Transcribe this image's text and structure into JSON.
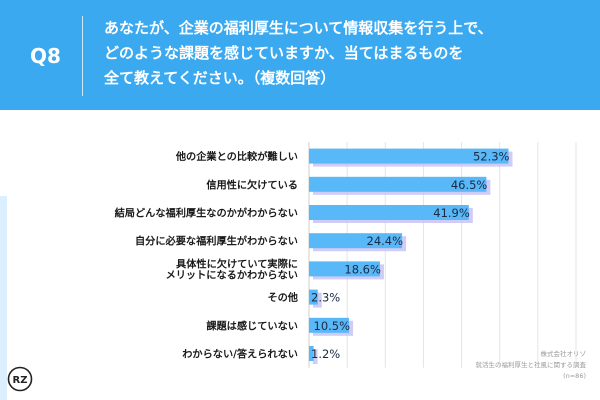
{
  "question": {
    "label": "Q8",
    "lines": [
      "あなたが、企業の福利厚生について情報収集を行う上で、",
      "どのような課題を感じていますか、当てはまるものを",
      "全て教えてください。（複数回答）"
    ]
  },
  "chart_data": {
    "type": "bar",
    "orientation": "horizontal",
    "categories": [
      "他の企業との比較が難しい",
      "信用性に欠けている",
      "結局どんな福利厚生なのかがわからない",
      "自分に必要な福利厚生がわからない",
      "具体性に欠けていて実際にメリットになるかわからない",
      "その他",
      "課題は感じていない",
      "わからない/答えられない"
    ],
    "category_lines": [
      [
        "他の企業との比較が難しい"
      ],
      [
        "信用性に欠けている"
      ],
      [
        "結局どんな福利厚生なのかがわからない"
      ],
      [
        "自分に必要な福利厚生がわからない"
      ],
      [
        "具体性に欠けていて実際に",
        "メリットになるかわからない"
      ],
      [
        "その他"
      ],
      [
        "課題は感じていない"
      ],
      [
        "わからない/答えられない"
      ]
    ],
    "values": [
      52.3,
      46.5,
      41.9,
      24.4,
      18.6,
      2.3,
      10.5,
      1.2
    ],
    "value_labels": [
      "52.3%",
      "46.5%",
      "41.9%",
      "24.4%",
      "18.6%",
      "2.3%",
      "10.5%",
      "1.2%"
    ],
    "xlim": [
      0,
      70
    ],
    "grid": true,
    "bar_color": "#58b8f8",
    "bar_shadow_color": "#c7c3f7"
  },
  "source": {
    "lines": [
      "株式会社オリゾ",
      "就活生の福利厚生と社風に関する調査",
      "(n=86)"
    ]
  },
  "colors": {
    "header": "#3aa9f0",
    "label_text": "#1a1a1a",
    "value_text": "#1c2a44",
    "grid": "#e4e4e4"
  },
  "logo": {
    "icon": "orizo-logo-icon",
    "text": "RZ"
  }
}
